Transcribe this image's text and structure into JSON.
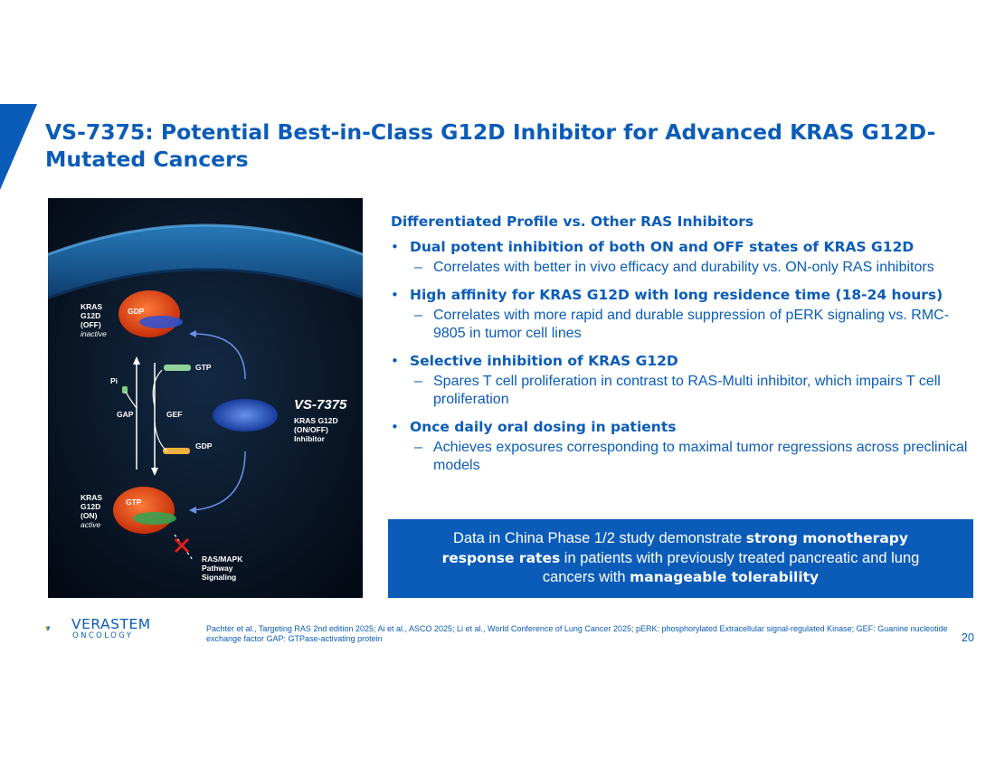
{
  "slide": {
    "title": "VS-7375: Potential Best-in-Class G12D Inhibitor for Advanced KRAS G12D-Mutated Cancers",
    "page_number": "20",
    "brand_color": "#0b5cb8"
  },
  "figure": {
    "off_label": "KRAS\nG12D\n(OFF)",
    "off_state": "inactive",
    "on_label": "KRAS\nG12D\n(ON)",
    "on_state": "active",
    "gdp_on_protein": "GDP",
    "gtp_on_protein": "GTP",
    "gtp": "GTP",
    "pi": "Pi",
    "gap": "GAP",
    "gef": "GEF",
    "gdp": "GDP",
    "drug_name": "VS-7375",
    "drug_desc": "KRAS G12D\n(ON/OFF)\nInhibitor",
    "pathway": "RAS/MAPK\nPathway\nSignaling"
  },
  "profile": {
    "heading": "Differentiated Profile vs. Other RAS Inhibitors",
    "bullets": [
      {
        "head": "Dual potent inhibition of both ON and OFF states of KRAS G12D",
        "sub": "Correlates with better in vivo efficacy and durability vs. ON-only RAS inhibitors"
      },
      {
        "head": "High affinity for KRAS G12D with long residence time (18-24 hours)",
        "sub": "Correlates with more rapid and durable suppression of pERK signaling vs. RMC-9805 in tumor cell lines"
      },
      {
        "head": "Selective inhibition of KRAS G12D",
        "sub": "Spares T cell proliferation in contrast to RAS-Multi inhibitor, which impairs T cell proliferation"
      },
      {
        "head": "Once daily oral dosing in patients",
        "sub": "Achieves exposures corresponding to maximal tumor regressions across preclinical models"
      }
    ]
  },
  "callout": {
    "part1": "Data in China Phase 1/2 study demonstrate ",
    "bold1": "strong monotherapy response rates",
    "part2": " in patients with previously treated pancreatic and lung cancers with ",
    "bold2": "manageable tolerability"
  },
  "logo": {
    "name": "VERASTEM",
    "sub": "ONCOLOGY"
  },
  "footnote": "Pachter et al., Targeting RAS 2nd edition 2025; Ai et al., ASCO 2025; Li et al., World Conference of Lung Cancer 2025; pERK: phosphorylated Extracellular signal-regulated Kinase; GEF: Guanine nucleotide exchange factor GAP: GTPase-activating protein"
}
